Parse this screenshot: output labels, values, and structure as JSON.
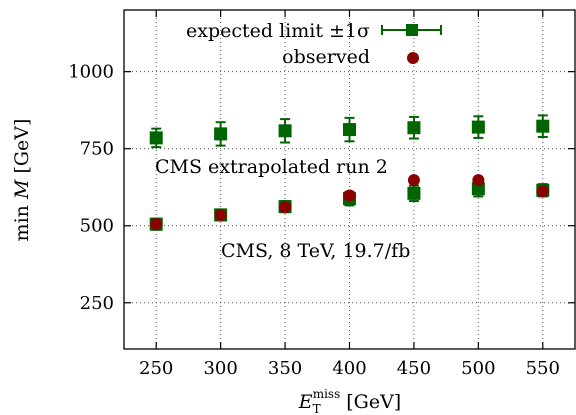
{
  "chart_data": {
    "type": "scatter",
    "xlabel": "E_T^miss [GeV]",
    "xlabel_main": "E",
    "xlabel_sub": "T",
    "xlabel_sup": "miss",
    "xlabel_unit": "[GeV]",
    "ylabel": "min M [GeV]",
    "ylabel_prefix": "min",
    "ylabel_var": "M",
    "ylabel_unit": "[GeV]",
    "xlim": [
      225,
      575
    ],
    "ylim": [
      100,
      1200
    ],
    "x_ticks": [
      250,
      300,
      350,
      400,
      450,
      500,
      550
    ],
    "y_ticks": [
      250,
      500,
      750,
      1000
    ],
    "grid": true,
    "legend_position": "top",
    "series": [
      {
        "name": "expected limit ±1σ",
        "marker": "square",
        "color": "#006400",
        "groups": [
          {
            "x": [
              250,
              300,
              350,
              400,
              450,
              500,
              550
            ],
            "y": [
              785,
              798,
              808,
              812,
              818,
              820,
              823
            ],
            "err": [
              30,
              38,
              38,
              38,
              35,
              35,
              35
            ]
          },
          {
            "x": [
              250,
              300,
              350,
              400,
              450,
              500,
              550
            ],
            "y": [
              505,
              535,
              562,
              588,
              605,
              620,
              615
            ],
            "err": [
              18,
              18,
              18,
              22,
              25,
              25,
              20
            ]
          }
        ]
      },
      {
        "name": "observed",
        "marker": "circle",
        "color": "#8b0000",
        "x": [
          250,
          300,
          350,
          400,
          450,
          500,
          550
        ],
        "y": [
          505,
          535,
          560,
          598,
          648,
          648,
          612
        ]
      }
    ],
    "annotations": [
      "CMS extrapolated run 2",
      "CMS, 8 TeV, 19.7/fb"
    ]
  }
}
